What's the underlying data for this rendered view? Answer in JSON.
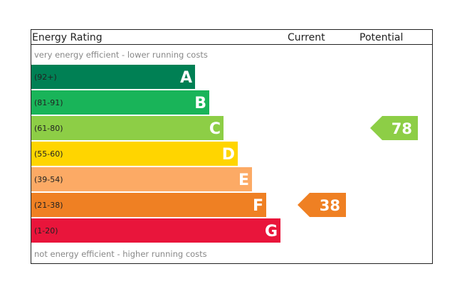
{
  "chart_data": {
    "type": "bar",
    "header": {
      "title": "Energy Rating",
      "current_label": "Current",
      "potential_label": "Potential"
    },
    "top_note": "very energy efficient - lower running costs",
    "bottom_note": "not energy efficient - higher running costs",
    "bands": [
      {
        "letter": "A",
        "range": "(92+)",
        "color": "#008054"
      },
      {
        "letter": "B",
        "range": "(81-91)",
        "color": "#19b459"
      },
      {
        "letter": "C",
        "range": "(61-80)",
        "color": "#8dce46"
      },
      {
        "letter": "D",
        "range": "(55-60)",
        "color": "#ffd500"
      },
      {
        "letter": "E",
        "range": "(39-54)",
        "color": "#fcaa65"
      },
      {
        "letter": "F",
        "range": "(21-38)",
        "color": "#ef8023"
      },
      {
        "letter": "G",
        "range": "(1-20)",
        "color": "#e9153b"
      }
    ],
    "current": {
      "value": "38",
      "band": "F",
      "color": "#ef8023"
    },
    "potential": {
      "value": "78",
      "band": "C",
      "color": "#8dce46"
    }
  }
}
